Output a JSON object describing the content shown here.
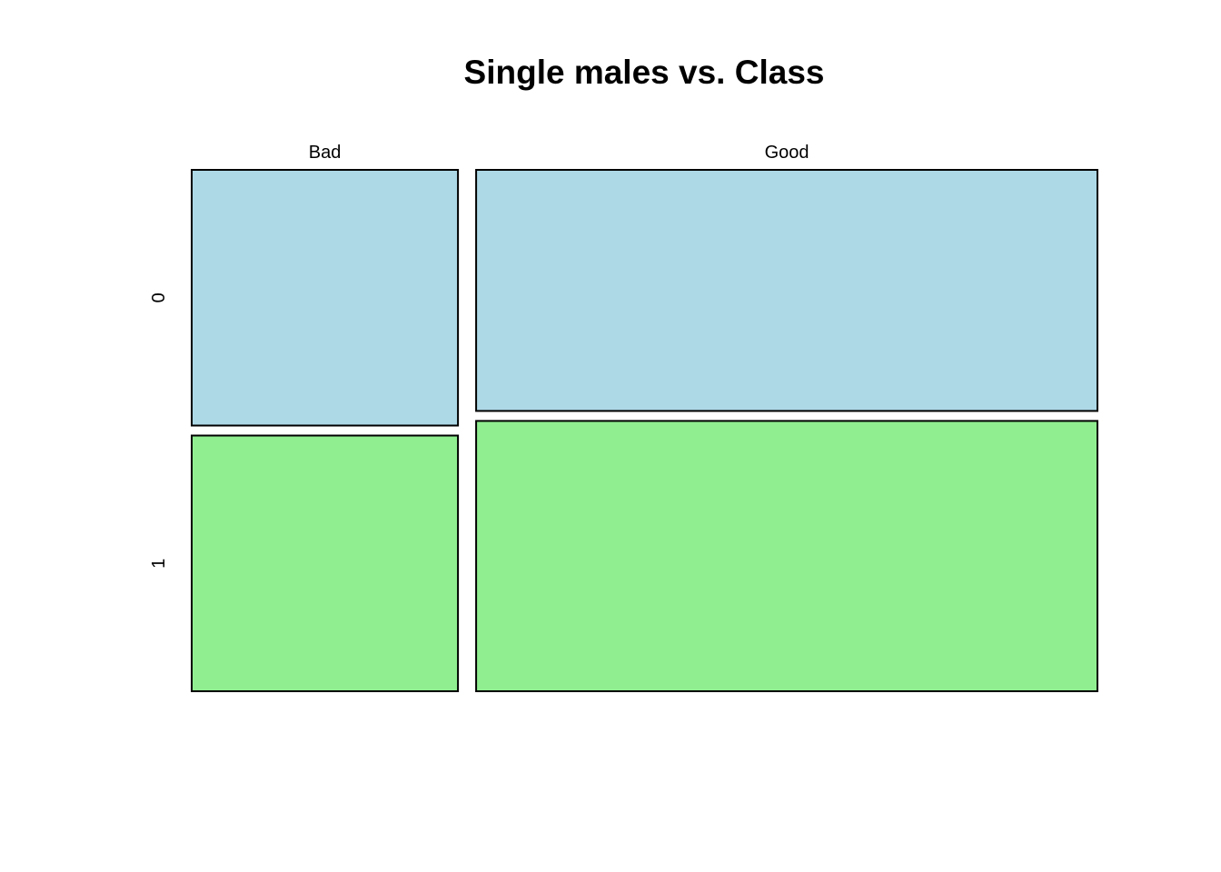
{
  "chart_data": {
    "type": "mosaic",
    "title": "Single males vs. Class",
    "xlabel": "",
    "ylabel": "",
    "x_categories": [
      "Bad",
      "Good"
    ],
    "y_categories": [
      "0",
      "1"
    ],
    "counts": [
      [
        150,
        150
      ],
      [
        330,
        370
      ]
    ],
    "colors": {
      "0": "#ADD8E6",
      "1": "#90EE90"
    },
    "grid": false,
    "legend": "none"
  }
}
